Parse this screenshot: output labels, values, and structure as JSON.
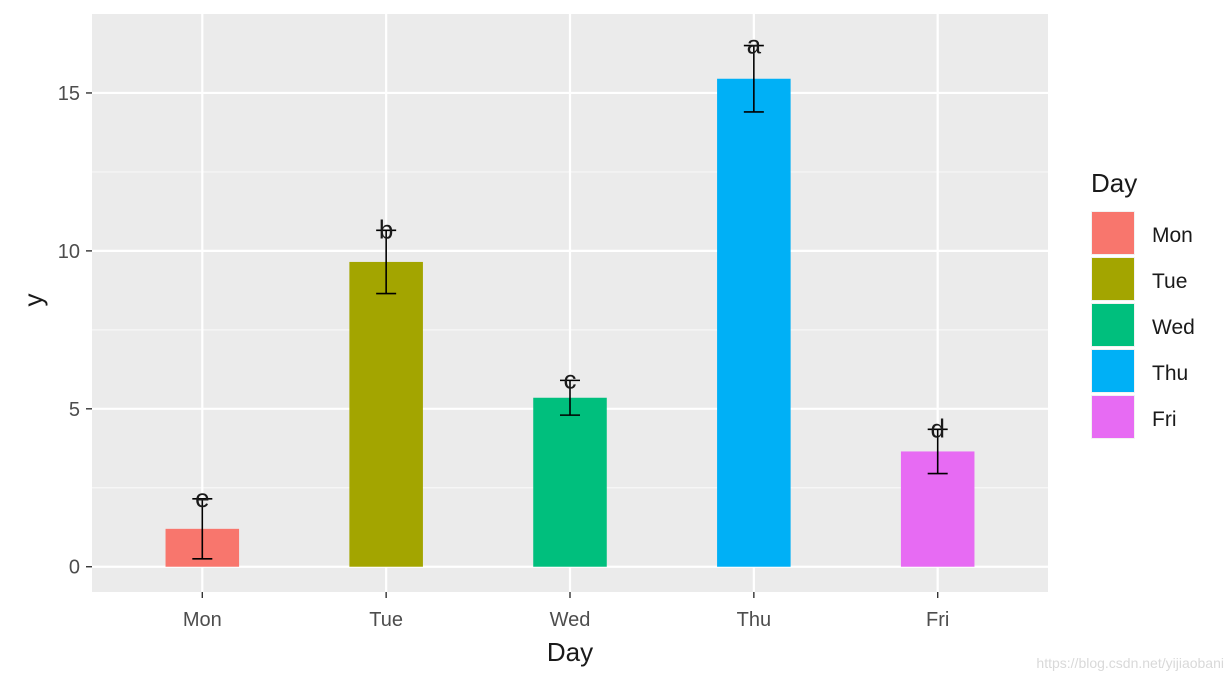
{
  "chart_data": {
    "type": "bar",
    "categories": [
      "Mon",
      "Tue",
      "Wed",
      "Thu",
      "Fri"
    ],
    "values": [
      1.2,
      9.65,
      5.35,
      15.45,
      3.65
    ],
    "error": [
      0.95,
      1.0,
      0.55,
      1.05,
      0.7
    ],
    "significance_labels": [
      "e",
      "b",
      "c",
      "a",
      "d"
    ],
    "colors": [
      "#F8766D",
      "#A3A500",
      "#00BF7D",
      "#00B0F6",
      "#E76BF3"
    ],
    "xlabel": "Day",
    "ylabel": "y",
    "ylim": [
      -0.8,
      17.5
    ],
    "yticks": [
      0,
      5,
      10,
      15
    ],
    "grid": true,
    "legend": {
      "title": "Day",
      "placement": "right",
      "entries": [
        "Mon",
        "Tue",
        "Wed",
        "Thu",
        "Fri"
      ]
    }
  },
  "watermark": "https://blog.csdn.net/yijiaobani"
}
